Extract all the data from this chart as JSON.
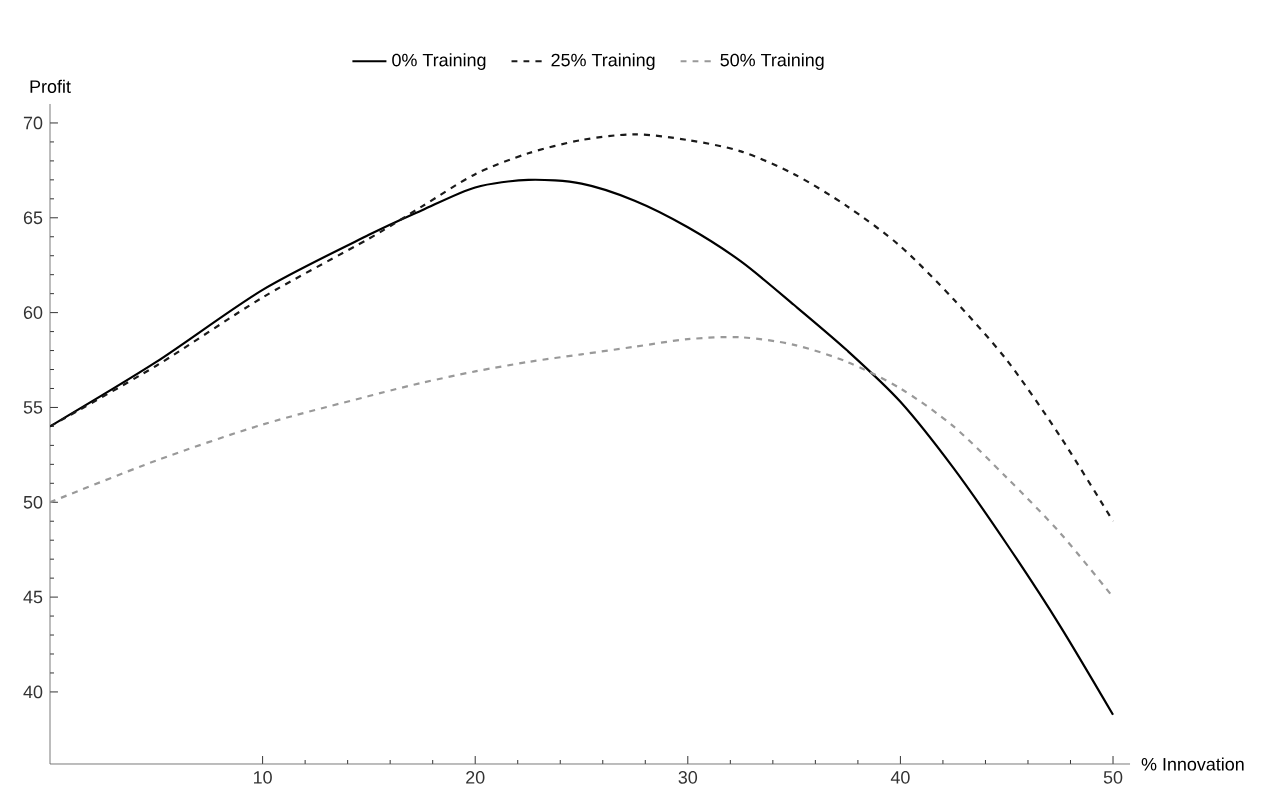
{
  "chart_data": {
    "type": "line",
    "xlabel": "% Innovation",
    "ylabel": "Profit",
    "x": [
      0,
      5,
      10,
      15,
      17.5,
      20,
      22.5,
      25,
      27.5,
      30,
      32.5,
      35,
      37.5,
      40,
      42.5,
      45,
      47.5,
      50
    ],
    "series": [
      {
        "name": "0% Training",
        "color": "#000000",
        "line_style": "solid",
        "values": [
          54,
          57.4,
          61.2,
          64.1,
          65.4,
          66.6,
          67.0,
          66.8,
          65.9,
          64.5,
          62.7,
          60.4,
          58.0,
          55.3,
          51.8,
          47.8,
          43.5,
          38.8
        ]
      },
      {
        "name": "25% Training",
        "color": "#1a1a1a",
        "line_style": "dashed",
        "values": [
          54,
          57.2,
          60.8,
          63.9,
          65.6,
          67.3,
          68.4,
          69.1,
          69.4,
          69.1,
          68.5,
          67.3,
          65.6,
          63.5,
          60.7,
          57.5,
          53.5,
          49.0
        ]
      },
      {
        "name": "50% Training",
        "color": "#999999",
        "line_style": "dashed",
        "values": [
          50,
          52.2,
          54.1,
          55.6,
          56.3,
          56.9,
          57.4,
          57.8,
          58.2,
          58.6,
          58.7,
          58.3,
          57.4,
          56.0,
          54.0,
          51.3,
          48.4,
          45.0
        ]
      }
    ],
    "xlim": [
      0,
      50.8
    ],
    "ylim": [
      36.2,
      71
    ],
    "xticks": [
      10,
      20,
      30,
      40,
      50
    ],
    "yticks": [
      40,
      45,
      50,
      55,
      60,
      65,
      70
    ],
    "grid": false,
    "legend": "top",
    "marker": "none"
  }
}
